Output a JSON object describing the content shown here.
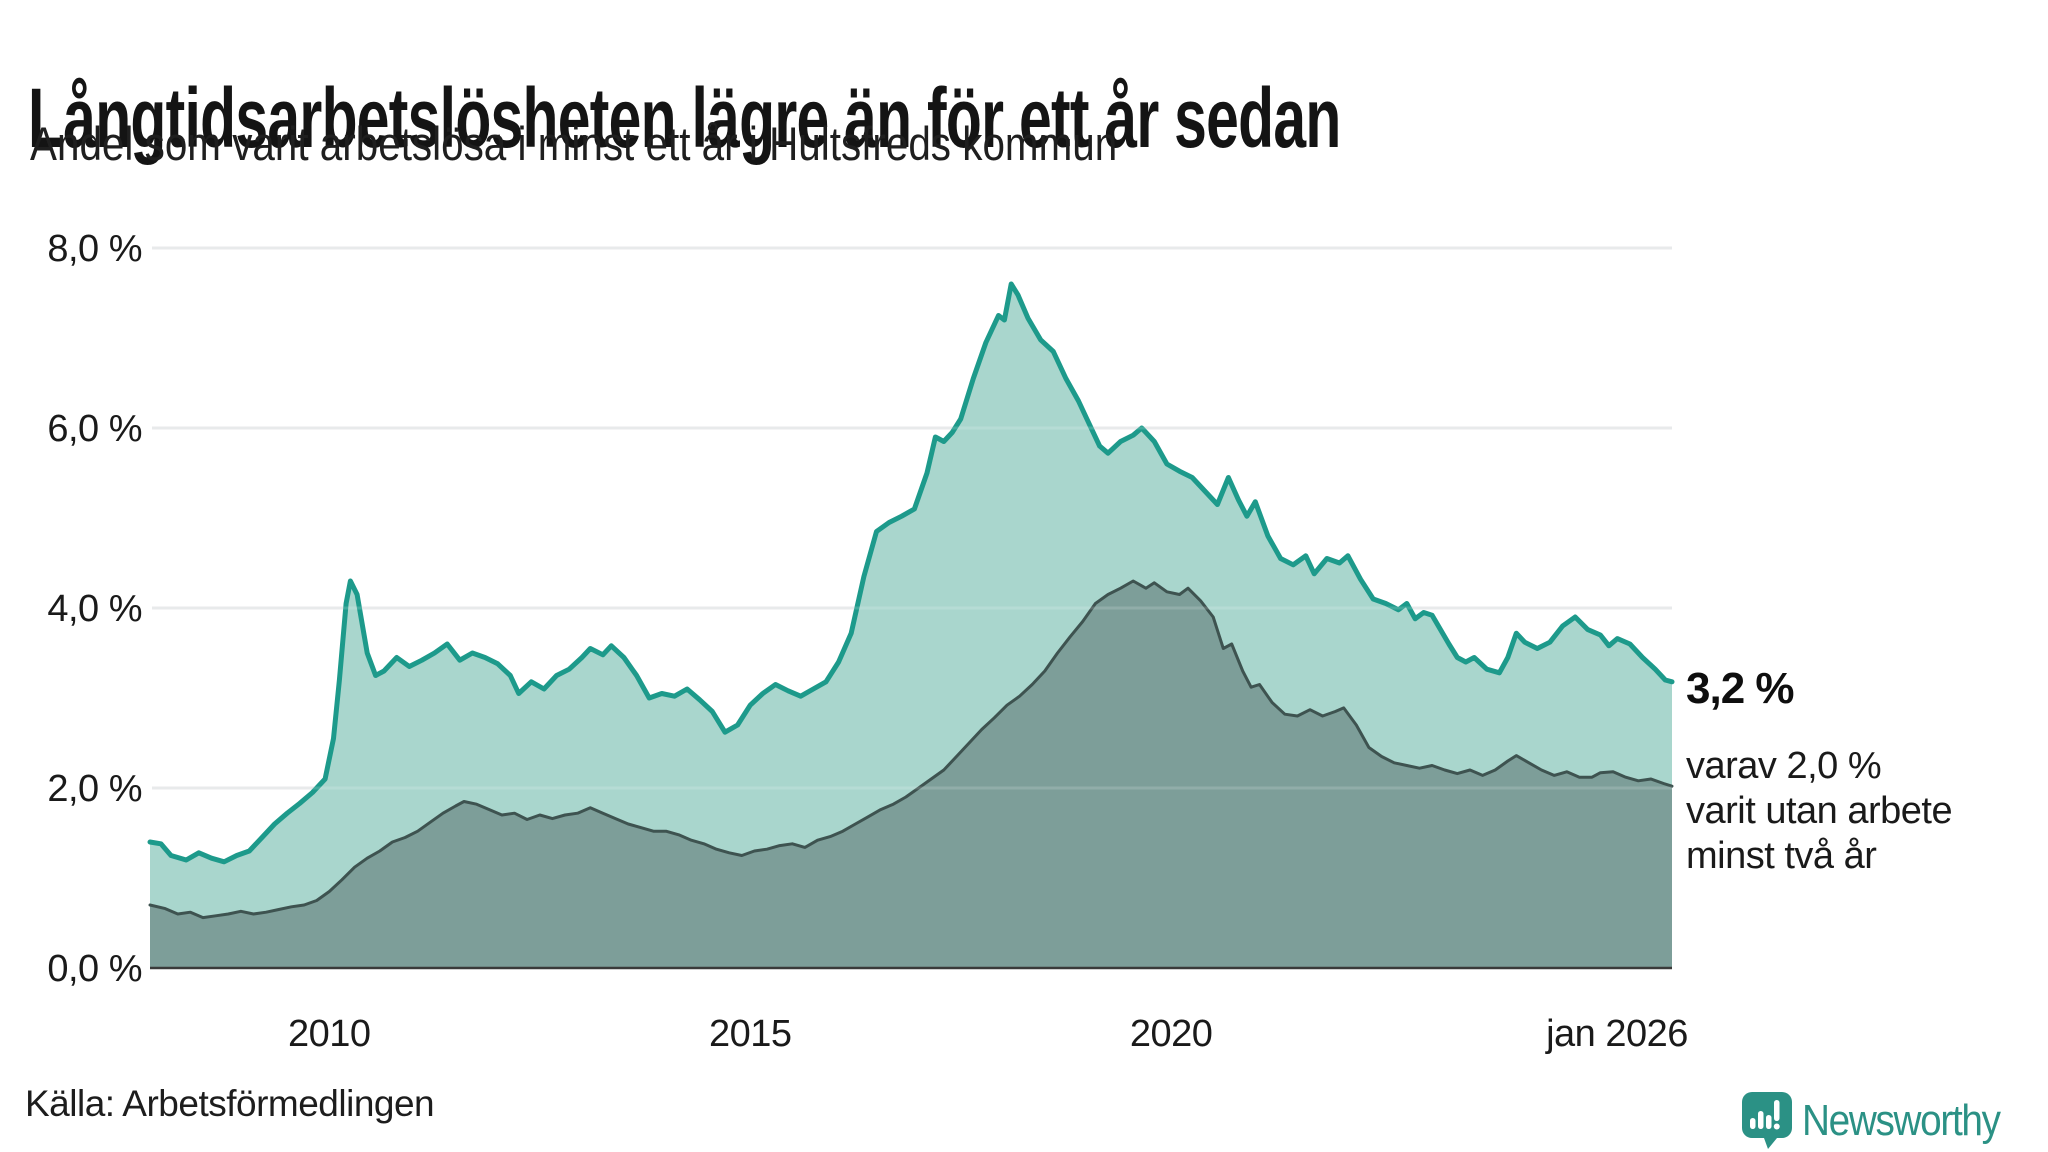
{
  "header": {
    "title": "Långtidsarbetslösheten lägre än för ett år sedan",
    "subtitle": "Andel som varit arbetslösa i minst ett år i Hultsfreds kommun"
  },
  "annotation": {
    "total_value": "3,2 %",
    "detail": "varav 2,0 %\nvarit utan arbete\nminst två år"
  },
  "footer": {
    "source": "Källa: Arbetsförmedlingen"
  },
  "logo": {
    "text": "Newsworthy",
    "color": "#2b9185",
    "icon": "newsworthy-speech-bubble-chart-icon"
  },
  "colors": {
    "gridline": "#e4e6e8",
    "baseline": "#3a3a3a",
    "tick_text": "#1a1a1a"
  },
  "chart_data": {
    "type": "area",
    "title": "Långtidsarbetslösheten lägre än för ett år sedan",
    "subtitle": "Andel som varit arbetslösa i minst ett år i Hultsfreds kommun",
    "unit": "%",
    "grid": true,
    "x_axis": {
      "range": [
        2007.87,
        2025.95
      ],
      "ticks": [
        {
          "label": "2010",
          "year": 2010
        },
        {
          "label": "2015",
          "year": 2015
        },
        {
          "label": "2020",
          "year": 2020
        },
        {
          "label": "jan 2026",
          "year": 2025.95,
          "inset": true
        }
      ]
    },
    "y_axis": {
      "range": [
        0,
        8
      ],
      "gridlines": [
        2,
        4,
        6,
        8
      ],
      "ticks": [
        {
          "label": "8,0 %",
          "value": 8
        },
        {
          "label": "6,0 %",
          "value": 6
        },
        {
          "label": "4,0 %",
          "value": 4
        },
        {
          "label": "2,0 %",
          "value": 2
        },
        {
          "label": "0,0 %",
          "value": 0
        }
      ]
    },
    "series": [
      {
        "name": "Arbetslösa minst ett år",
        "end_label": "3,2 %",
        "line_color": "#1d9a8b",
        "fill_color": "#a9d6cd",
        "line_width": 5,
        "points": [
          [
            2007.87,
            1.4
          ],
          [
            2008.0,
            1.38
          ],
          [
            2008.12,
            1.25
          ],
          [
            2008.3,
            1.2
          ],
          [
            2008.45,
            1.28
          ],
          [
            2008.6,
            1.22
          ],
          [
            2008.75,
            1.18
          ],
          [
            2008.9,
            1.25
          ],
          [
            2009.05,
            1.3
          ],
          [
            2009.2,
            1.45
          ],
          [
            2009.35,
            1.6
          ],
          [
            2009.5,
            1.72
          ],
          [
            2009.65,
            1.83
          ],
          [
            2009.8,
            1.95
          ],
          [
            2009.95,
            2.1
          ],
          [
            2010.05,
            2.55
          ],
          [
            2010.12,
            3.2
          ],
          [
            2010.2,
            4.05
          ],
          [
            2010.25,
            4.3
          ],
          [
            2010.33,
            4.15
          ],
          [
            2010.45,
            3.5
          ],
          [
            2010.55,
            3.25
          ],
          [
            2010.65,
            3.3
          ],
          [
            2010.8,
            3.45
          ],
          [
            2010.95,
            3.35
          ],
          [
            2011.1,
            3.42
          ],
          [
            2011.25,
            3.5
          ],
          [
            2011.4,
            3.6
          ],
          [
            2011.55,
            3.42
          ],
          [
            2011.7,
            3.5
          ],
          [
            2011.85,
            3.45
          ],
          [
            2012.0,
            3.38
          ],
          [
            2012.15,
            3.25
          ],
          [
            2012.25,
            3.05
          ],
          [
            2012.4,
            3.18
          ],
          [
            2012.55,
            3.1
          ],
          [
            2012.7,
            3.25
          ],
          [
            2012.85,
            3.32
          ],
          [
            2013.0,
            3.45
          ],
          [
            2013.1,
            3.55
          ],
          [
            2013.25,
            3.48
          ],
          [
            2013.35,
            3.58
          ],
          [
            2013.5,
            3.45
          ],
          [
            2013.65,
            3.25
          ],
          [
            2013.8,
            3.0
          ],
          [
            2013.95,
            3.05
          ],
          [
            2014.1,
            3.02
          ],
          [
            2014.25,
            3.1
          ],
          [
            2014.4,
            2.98
          ],
          [
            2014.55,
            2.85
          ],
          [
            2014.7,
            2.62
          ],
          [
            2014.85,
            2.7
          ],
          [
            2015.0,
            2.92
          ],
          [
            2015.15,
            3.05
          ],
          [
            2015.3,
            3.15
          ],
          [
            2015.45,
            3.08
          ],
          [
            2015.6,
            3.02
          ],
          [
            2015.75,
            3.1
          ],
          [
            2015.9,
            3.18
          ],
          [
            2016.05,
            3.4
          ],
          [
            2016.2,
            3.72
          ],
          [
            2016.35,
            4.35
          ],
          [
            2016.5,
            4.85
          ],
          [
            2016.65,
            4.95
          ],
          [
            2016.8,
            5.02
          ],
          [
            2016.95,
            5.1
          ],
          [
            2017.1,
            5.5
          ],
          [
            2017.2,
            5.9
          ],
          [
            2017.3,
            5.85
          ],
          [
            2017.4,
            5.95
          ],
          [
            2017.5,
            6.1
          ],
          [
            2017.65,
            6.55
          ],
          [
            2017.8,
            6.95
          ],
          [
            2017.95,
            7.25
          ],
          [
            2018.02,
            7.2
          ],
          [
            2018.1,
            7.6
          ],
          [
            2018.18,
            7.48
          ],
          [
            2018.3,
            7.22
          ],
          [
            2018.45,
            6.98
          ],
          [
            2018.6,
            6.85
          ],
          [
            2018.75,
            6.55
          ],
          [
            2018.9,
            6.3
          ],
          [
            2019.0,
            6.1
          ],
          [
            2019.15,
            5.8
          ],
          [
            2019.25,
            5.72
          ],
          [
            2019.4,
            5.85
          ],
          [
            2019.55,
            5.92
          ],
          [
            2019.65,
            6.0
          ],
          [
            2019.8,
            5.85
          ],
          [
            2019.95,
            5.6
          ],
          [
            2020.1,
            5.52
          ],
          [
            2020.25,
            5.45
          ],
          [
            2020.4,
            5.3
          ],
          [
            2020.55,
            5.15
          ],
          [
            2020.68,
            5.45
          ],
          [
            2020.8,
            5.2
          ],
          [
            2020.9,
            5.02
          ],
          [
            2021.0,
            5.18
          ],
          [
            2021.15,
            4.8
          ],
          [
            2021.3,
            4.55
          ],
          [
            2021.45,
            4.48
          ],
          [
            2021.6,
            4.58
          ],
          [
            2021.7,
            4.38
          ],
          [
            2021.85,
            4.55
          ],
          [
            2022.0,
            4.5
          ],
          [
            2022.1,
            4.58
          ],
          [
            2022.25,
            4.32
          ],
          [
            2022.4,
            4.1
          ],
          [
            2022.55,
            4.05
          ],
          [
            2022.7,
            3.98
          ],
          [
            2022.8,
            4.05
          ],
          [
            2022.9,
            3.88
          ],
          [
            2023.0,
            3.95
          ],
          [
            2023.1,
            3.92
          ],
          [
            2023.3,
            3.6
          ],
          [
            2023.4,
            3.45
          ],
          [
            2023.5,
            3.4
          ],
          [
            2023.6,
            3.45
          ],
          [
            2023.75,
            3.32
          ],
          [
            2023.9,
            3.28
          ],
          [
            2024.0,
            3.45
          ],
          [
            2024.1,
            3.72
          ],
          [
            2024.2,
            3.62
          ],
          [
            2024.35,
            3.55
          ],
          [
            2024.5,
            3.62
          ],
          [
            2024.65,
            3.8
          ],
          [
            2024.8,
            3.9
          ],
          [
            2024.95,
            3.76
          ],
          [
            2025.1,
            3.7
          ],
          [
            2025.2,
            3.58
          ],
          [
            2025.3,
            3.66
          ],
          [
            2025.45,
            3.6
          ],
          [
            2025.6,
            3.45
          ],
          [
            2025.75,
            3.32
          ],
          [
            2025.87,
            3.2
          ],
          [
            2025.95,
            3.18
          ]
        ]
      },
      {
        "name": "Arbetslösa minst två år",
        "end_label": "2,0 %",
        "line_color": "#3e5350",
        "fill_color": "#7d9e99",
        "line_width": 3,
        "points": [
          [
            2007.87,
            0.7
          ],
          [
            2008.05,
            0.66
          ],
          [
            2008.2,
            0.6
          ],
          [
            2008.35,
            0.62
          ],
          [
            2008.5,
            0.56
          ],
          [
            2008.65,
            0.58
          ],
          [
            2008.8,
            0.6
          ],
          [
            2008.95,
            0.63
          ],
          [
            2009.1,
            0.6
          ],
          [
            2009.25,
            0.62
          ],
          [
            2009.4,
            0.65
          ],
          [
            2009.55,
            0.68
          ],
          [
            2009.7,
            0.7
          ],
          [
            2009.85,
            0.75
          ],
          [
            2010.0,
            0.85
          ],
          [
            2010.15,
            0.98
          ],
          [
            2010.3,
            1.12
          ],
          [
            2010.45,
            1.22
          ],
          [
            2010.6,
            1.3
          ],
          [
            2010.75,
            1.4
          ],
          [
            2010.9,
            1.45
          ],
          [
            2011.05,
            1.52
          ],
          [
            2011.2,
            1.62
          ],
          [
            2011.35,
            1.72
          ],
          [
            2011.5,
            1.8
          ],
          [
            2011.6,
            1.85
          ],
          [
            2011.75,
            1.82
          ],
          [
            2011.9,
            1.76
          ],
          [
            2012.05,
            1.7
          ],
          [
            2012.2,
            1.72
          ],
          [
            2012.35,
            1.65
          ],
          [
            2012.5,
            1.7
          ],
          [
            2012.65,
            1.66
          ],
          [
            2012.8,
            1.7
          ],
          [
            2012.95,
            1.72
          ],
          [
            2013.1,
            1.78
          ],
          [
            2013.25,
            1.72
          ],
          [
            2013.4,
            1.66
          ],
          [
            2013.55,
            1.6
          ],
          [
            2013.7,
            1.56
          ],
          [
            2013.85,
            1.52
          ],
          [
            2014.0,
            1.52
          ],
          [
            2014.15,
            1.48
          ],
          [
            2014.3,
            1.42
          ],
          [
            2014.45,
            1.38
          ],
          [
            2014.6,
            1.32
          ],
          [
            2014.75,
            1.28
          ],
          [
            2014.9,
            1.25
          ],
          [
            2015.05,
            1.3
          ],
          [
            2015.2,
            1.32
          ],
          [
            2015.35,
            1.36
          ],
          [
            2015.5,
            1.38
          ],
          [
            2015.65,
            1.34
          ],
          [
            2015.8,
            1.42
          ],
          [
            2015.95,
            1.46
          ],
          [
            2016.1,
            1.52
          ],
          [
            2016.25,
            1.6
          ],
          [
            2016.4,
            1.68
          ],
          [
            2016.55,
            1.76
          ],
          [
            2016.7,
            1.82
          ],
          [
            2016.85,
            1.9
          ],
          [
            2017.0,
            2.0
          ],
          [
            2017.15,
            2.1
          ],
          [
            2017.3,
            2.2
          ],
          [
            2017.45,
            2.35
          ],
          [
            2017.6,
            2.5
          ],
          [
            2017.75,
            2.65
          ],
          [
            2017.9,
            2.78
          ],
          [
            2018.05,
            2.92
          ],
          [
            2018.2,
            3.02
          ],
          [
            2018.35,
            3.15
          ],
          [
            2018.5,
            3.3
          ],
          [
            2018.65,
            3.5
          ],
          [
            2018.8,
            3.68
          ],
          [
            2018.95,
            3.85
          ],
          [
            2019.1,
            4.05
          ],
          [
            2019.25,
            4.15
          ],
          [
            2019.4,
            4.22
          ],
          [
            2019.55,
            4.3
          ],
          [
            2019.7,
            4.22
          ],
          [
            2019.8,
            4.28
          ],
          [
            2019.95,
            4.18
          ],
          [
            2020.1,
            4.15
          ],
          [
            2020.2,
            4.22
          ],
          [
            2020.35,
            4.08
          ],
          [
            2020.5,
            3.9
          ],
          [
            2020.62,
            3.55
          ],
          [
            2020.72,
            3.6
          ],
          [
            2020.85,
            3.3
          ],
          [
            2020.95,
            3.12
          ],
          [
            2021.05,
            3.15
          ],
          [
            2021.2,
            2.95
          ],
          [
            2021.35,
            2.82
          ],
          [
            2021.5,
            2.8
          ],
          [
            2021.65,
            2.87
          ],
          [
            2021.8,
            2.8
          ],
          [
            2021.95,
            2.85
          ],
          [
            2022.05,
            2.89
          ],
          [
            2022.2,
            2.7
          ],
          [
            2022.35,
            2.45
          ],
          [
            2022.5,
            2.35
          ],
          [
            2022.65,
            2.28
          ],
          [
            2022.8,
            2.25
          ],
          [
            2022.95,
            2.22
          ],
          [
            2023.1,
            2.25
          ],
          [
            2023.25,
            2.2
          ],
          [
            2023.4,
            2.16
          ],
          [
            2023.55,
            2.2
          ],
          [
            2023.7,
            2.14
          ],
          [
            2023.85,
            2.2
          ],
          [
            2024.0,
            2.3
          ],
          [
            2024.1,
            2.36
          ],
          [
            2024.25,
            2.28
          ],
          [
            2024.4,
            2.2
          ],
          [
            2024.55,
            2.14
          ],
          [
            2024.7,
            2.18
          ],
          [
            2024.85,
            2.12
          ],
          [
            2025.0,
            2.12
          ],
          [
            2025.1,
            2.17
          ],
          [
            2025.25,
            2.18
          ],
          [
            2025.4,
            2.12
          ],
          [
            2025.55,
            2.08
          ],
          [
            2025.7,
            2.1
          ],
          [
            2025.85,
            2.05
          ],
          [
            2025.95,
            2.02
          ]
        ]
      }
    ]
  }
}
